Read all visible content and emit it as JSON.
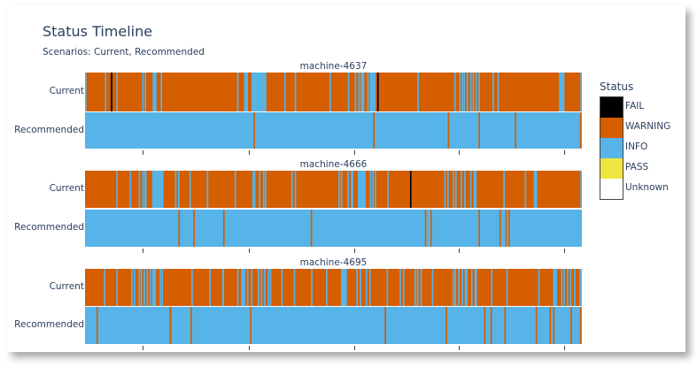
{
  "title": "Status Timeline",
  "subtitle": "Scenarios: Current, Recommended",
  "legend": {
    "title": "Status",
    "items": [
      {
        "label": "FAIL",
        "color": "#000000"
      },
      {
        "label": "WARNING",
        "color": "#d55e00"
      },
      {
        "label": "INFO",
        "color": "#56b4e9"
      },
      {
        "label": "PASS",
        "color": "#f0e442"
      },
      {
        "label": "Unknown",
        "color": "#ffffff"
      }
    ]
  },
  "chart_data": {
    "type": "heatmap",
    "xrange": [
      0,
      100
    ],
    "xticks": [
      11.6,
      33,
      54.2,
      75.2,
      96.4
    ],
    "panels": [
      {
        "title": "machine-4637",
        "rows": [
          {
            "label": "Current",
            "base": "WARNING",
            "events": [
              [
                "INFO",
                0,
                0.3
              ],
              [
                "INFO",
                4,
                0.3
              ],
              [
                "FAIL",
                5.2,
                0.3
              ],
              [
                "INFO",
                6.3,
                0.3
              ],
              [
                "INFO",
                11.5,
                0.3
              ],
              [
                "INFO",
                12,
                0.3
              ],
              [
                "INFO",
                13.6,
                0.8
              ],
              [
                "INFO",
                15.2,
                0.3
              ],
              [
                "INFO",
                30.6,
                0.3
              ],
              [
                "INFO",
                32,
                0.8
              ],
              [
                "INFO",
                33.5,
                2.3
              ],
              [
                "INFO",
                35.8,
                0.7
              ],
              [
                "INFO",
                40.1,
                0.3
              ],
              [
                "INFO",
                42.2,
                0.3
              ],
              [
                "INFO",
                49.2,
                0.3
              ],
              [
                "INFO",
                52.9,
                0.3
              ],
              [
                "INFO",
                54.3,
                0.3
              ],
              [
                "INFO",
                55,
                0.3
              ],
              [
                "INFO",
                55.5,
                0.7
              ],
              [
                "INFO",
                56.8,
                0.3
              ],
              [
                "INFO",
                57.3,
                1.2
              ],
              [
                "FAIL",
                58.8,
                0.3
              ],
              [
                "INFO",
                66.9,
                0.3
              ],
              [
                "INFO",
                74.3,
                0.3
              ],
              [
                "INFO",
                75.3,
                0.3
              ],
              [
                "INFO",
                75.8,
                0.3
              ],
              [
                "INFO",
                76.2,
                0.3
              ],
              [
                "INFO",
                76.8,
                0.3
              ],
              [
                "INFO",
                77.5,
                0.3
              ],
              [
                "INFO",
                78,
                0.3
              ],
              [
                "INFO",
                78.6,
                0.3
              ],
              [
                "INFO",
                79.2,
                0.3
              ],
              [
                "INFO",
                82,
                0.3
              ],
              [
                "INFO",
                83,
                0.3
              ],
              [
                "INFO",
                95.4,
                1.1
              ],
              [
                "INFO",
                99.7,
                0.3
              ]
            ]
          },
          {
            "label": "Recommended",
            "base": "INFO",
            "events": [
              [
                "WARNING",
                33.9,
                0.3
              ],
              [
                "WARNING",
                58,
                0.3
              ],
              [
                "WARNING",
                73,
                0.3
              ],
              [
                "WARNING",
                79.2,
                0.3
              ],
              [
                "WARNING",
                86.5,
                0.3
              ],
              [
                "WARNING",
                99.6,
                0.3
              ]
            ]
          }
        ]
      },
      {
        "title": "machine-4666",
        "rows": [
          {
            "label": "Current",
            "base": "WARNING",
            "events": [
              [
                "INFO",
                6.3,
                0.3
              ],
              [
                "INFO",
                9,
                0.3
              ],
              [
                "INFO",
                10.8,
                0.3
              ],
              [
                "INFO",
                11.5,
                0.3
              ],
              [
                "INFO",
                11.9,
                0.5
              ],
              [
                "INFO",
                13.5,
                2.3
              ],
              [
                "INFO",
                18.1,
                0.3
              ],
              [
                "INFO",
                18.7,
                0.3
              ],
              [
                "INFO",
                21,
                0.3
              ],
              [
                "INFO",
                24.5,
                0.3
              ],
              [
                "INFO",
                30.1,
                0.3
              ],
              [
                "INFO",
                33.7,
                0.6
              ],
              [
                "INFO",
                35,
                0.3
              ],
              [
                "INFO",
                35.8,
                0.3
              ],
              [
                "INFO",
                36.2,
                0.3
              ],
              [
                "INFO",
                41.5,
                0.3
              ],
              [
                "INFO",
                42.2,
                0.3
              ],
              [
                "INFO",
                51,
                0.3
              ],
              [
                "INFO",
                51.5,
                0.3
              ],
              [
                "INFO",
                52.8,
                0.3
              ],
              [
                "INFO",
                53.5,
                0.5
              ],
              [
                "INFO",
                54.9,
                1.6
              ],
              [
                "INFO",
                57.3,
                0.3
              ],
              [
                "INFO",
                57.8,
                0.3
              ],
              [
                "INFO",
                58.3,
                0.3
              ],
              [
                "INFO",
                60.8,
                0.3
              ],
              [
                "FAIL",
                65.4,
                0.3
              ],
              [
                "INFO",
                72.3,
                0.3
              ],
              [
                "INFO",
                72.9,
                0.3
              ],
              [
                "INFO",
                74,
                0.3
              ],
              [
                "INFO",
                74.5,
                0.3
              ],
              [
                "INFO",
                75.6,
                0.3
              ],
              [
                "INFO",
                76.3,
                0.3
              ],
              [
                "INFO",
                77.5,
                0.3
              ],
              [
                "INFO",
                78.2,
                0.6
              ],
              [
                "INFO",
                84.2,
                0.3
              ],
              [
                "INFO",
                88.5,
                0.3
              ],
              [
                "INFO",
                90.3,
                0.7
              ],
              [
                "INFO",
                99.7,
                0.3
              ]
            ]
          },
          {
            "label": "Recommended",
            "base": "INFO",
            "events": [
              [
                "WARNING",
                18.8,
                0.3
              ],
              [
                "WARNING",
                21.8,
                0.3
              ],
              [
                "WARNING",
                27.8,
                0.3
              ],
              [
                "WARNING",
                45.4,
                0.3
              ],
              [
                "WARNING",
                68.4,
                0.3
              ],
              [
                "WARNING",
                69.5,
                0.3
              ],
              [
                "WARNING",
                79.2,
                0.3
              ],
              [
                "WARNING",
                83.4,
                0.3
              ],
              [
                "WARNING",
                84.6,
                0.3
              ],
              [
                "WARNING",
                85.2,
                0.3
              ]
            ]
          }
        ]
      },
      {
        "title": "machine-4695",
        "rows": [
          {
            "label": "Current",
            "base": "WARNING",
            "events": [
              [
                "INFO",
                3.8,
                0.3
              ],
              [
                "INFO",
                6.3,
                0.3
              ],
              [
                "INFO",
                9.3,
                0.3
              ],
              [
                "INFO",
                9.8,
                0.3
              ],
              [
                "INFO",
                10.8,
                0.3
              ],
              [
                "INFO",
                11.2,
                0.3
              ],
              [
                "INFO",
                11.8,
                0.3
              ],
              [
                "INFO",
                12.4,
                0.3
              ],
              [
                "INFO",
                13,
                0.3
              ],
              [
                "INFO",
                13.5,
                0.8
              ],
              [
                "INFO",
                15,
                0.3
              ],
              [
                "INFO",
                15.4,
                0.3
              ],
              [
                "INFO",
                21.4,
                0.3
              ],
              [
                "INFO",
                25,
                0.3
              ],
              [
                "INFO",
                27.6,
                0.4
              ],
              [
                "INFO",
                30.6,
                0.3
              ],
              [
                "INFO",
                31.4,
                0.9
              ],
              [
                "INFO",
                32.6,
                0.3
              ],
              [
                "INFO",
                33.4,
                0.3
              ],
              [
                "INFO",
                34.8,
                0.3
              ],
              [
                "INFO",
                35.4,
                0.3
              ],
              [
                "INFO",
                36,
                0.3
              ],
              [
                "INFO",
                36.8,
                0.3
              ],
              [
                "INFO",
                37.2,
                0.3
              ],
              [
                "INFO",
                39.5,
                0.3
              ],
              [
                "INFO",
                42,
                0.3
              ],
              [
                "INFO",
                45.5,
                0.3
              ],
              [
                "INFO",
                48.5,
                0.3
              ],
              [
                "INFO",
                51.5,
                1.2
              ],
              [
                "INFO",
                54.6,
                0.3
              ],
              [
                "INFO",
                55.3,
                0.3
              ],
              [
                "INFO",
                56.5,
                0.3
              ],
              [
                "INFO",
                57.2,
                0.3
              ],
              [
                "INFO",
                60.7,
                0.3
              ],
              [
                "INFO",
                63.3,
                0.3
              ],
              [
                "INFO",
                64,
                0.3
              ],
              [
                "INFO",
                66.3,
                0.3
              ],
              [
                "INFO",
                66.8,
                0.3
              ],
              [
                "INFO",
                67.5,
                0.3
              ],
              [
                "INFO",
                69.8,
                0.3
              ],
              [
                "INFO",
                74,
                0.3
              ],
              [
                "INFO",
                74.4,
                0.3
              ],
              [
                "INFO",
                75.1,
                0.3
              ],
              [
                "INFO",
                75.8,
                0.3
              ],
              [
                "INFO",
                76.4,
                0.6
              ],
              [
                "INFO",
                77.7,
                0.3
              ],
              [
                "INFO",
                78.4,
                0.5
              ],
              [
                "INFO",
                81.7,
                0.3
              ],
              [
                "INFO",
                84.8,
                0.3
              ],
              [
                "INFO",
                91.2,
                0.3
              ],
              [
                "INFO",
                94.2,
                0.8
              ],
              [
                "INFO",
                95.8,
                0.3
              ],
              [
                "INFO",
                96.3,
                0.3
              ],
              [
                "INFO",
                97,
                0.3
              ],
              [
                "INFO",
                97.6,
                0.3
              ],
              [
                "INFO",
                98.4,
                0.3
              ],
              [
                "INFO",
                99.5,
                0.5
              ]
            ]
          },
          {
            "label": "Recommended",
            "base": "INFO",
            "events": [
              [
                "WARNING",
                2.3,
                0.3
              ],
              [
                "WARNING",
                17,
                0.4
              ],
              [
                "WARNING",
                21.2,
                0.3
              ],
              [
                "WARNING",
                33.2,
                0.3
              ],
              [
                "WARNING",
                60.3,
                0.3
              ],
              [
                "WARNING",
                72.6,
                0.3
              ],
              [
                "WARNING",
                80.3,
                0.3
              ],
              [
                "WARNING",
                81.6,
                0.3
              ],
              [
                "WARNING",
                84.4,
                0.3
              ],
              [
                "WARNING",
                90.7,
                0.3
              ],
              [
                "WARNING",
                93.5,
                0.3
              ],
              [
                "WARNING",
                94.2,
                0.3
              ],
              [
                "WARNING",
                97.7,
                0.3
              ],
              [
                "WARNING",
                99.6,
                0.3
              ]
            ]
          }
        ]
      }
    ]
  }
}
